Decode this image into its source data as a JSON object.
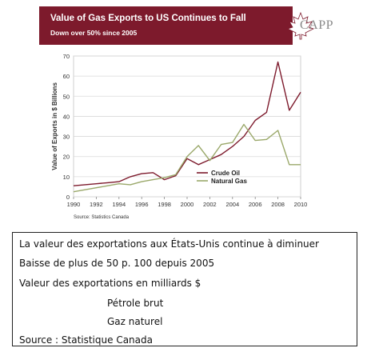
{
  "banner": {
    "title": "Value of Gas Exports to US Continues to Fall",
    "subtitle": "Down over 50% since 2005",
    "logo_text": "CAPP",
    "logo_icon": "maple-leaf-icon",
    "background_color": "#7d1a2c"
  },
  "chart_data": {
    "type": "line",
    "title": "",
    "xlabel": "",
    "ylabel": "Value of Exports in $ Billions",
    "ylim": [
      0,
      70
    ],
    "xlim": [
      1990,
      2010
    ],
    "yticks": [
      "0",
      "10",
      "20",
      "30",
      "40",
      "50",
      "60",
      "70"
    ],
    "xticks": [
      "1990",
      "1992",
      "1994",
      "1996",
      "1998",
      "2000",
      "2002",
      "2004",
      "2006",
      "2008",
      "2010"
    ],
    "grid": true,
    "legend_position": "center-right",
    "source": "Source: Statistics Canada",
    "series": [
      {
        "name": "Crude Oil",
        "color": "#7d1a2c",
        "x": [
          1990,
          1991,
          1992,
          1993,
          1994,
          1995,
          1996,
          1997,
          1998,
          1999,
          2000,
          2001,
          2002,
          2003,
          2004,
          2005,
          2006,
          2007,
          2008,
          2009,
          2010
        ],
        "values": [
          5.5,
          6,
          6.5,
          7,
          7.5,
          10,
          11.5,
          12,
          8.5,
          10.5,
          19,
          16,
          18.5,
          21,
          25,
          30,
          38,
          42,
          67,
          43,
          52
        ]
      },
      {
        "name": "Natural Gas",
        "color": "#9aa86a",
        "x": [
          1990,
          1991,
          1992,
          1993,
          1994,
          1995,
          1996,
          1997,
          1998,
          1999,
          2000,
          2001,
          2002,
          2003,
          2004,
          2005,
          2006,
          2007,
          2008,
          2009,
          2010
        ],
        "values": [
          2.5,
          3.5,
          4.5,
          5.5,
          6.5,
          6,
          7.5,
          8.5,
          9.5,
          11,
          20,
          25.5,
          18,
          26,
          27,
          36,
          28,
          28.5,
          33,
          16,
          16
        ]
      }
    ]
  },
  "translation": {
    "title": "La valeur des exportations aux États-Unis continue à diminuer",
    "subtitle": "Baisse de plus de 50 p. 100 depuis 2005",
    "ylabel": "Valeur des exportations en milliards $",
    "series1": "Pétrole brut",
    "series2": "Gaz naturel",
    "source": "Source : Statistique Canada"
  }
}
